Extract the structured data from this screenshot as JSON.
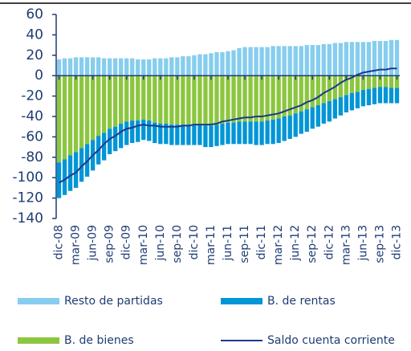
{
  "chart_data": {
    "type": "bar",
    "stacked": true,
    "categories": [
      "dic-08",
      null,
      null,
      "mar-09",
      null,
      null,
      "jun-09",
      null,
      null,
      "sep-09",
      null,
      null,
      "dic-09",
      null,
      null,
      "mar-10",
      null,
      null,
      "jun-10",
      null,
      null,
      "sep-10",
      null,
      null,
      "dic-10",
      null,
      null,
      "mar-11",
      null,
      null,
      "jun-11",
      null,
      null,
      "sep-11",
      null,
      null,
      "dic-11",
      null,
      null,
      "mar-12",
      null,
      null,
      "jun-12",
      null,
      null,
      "sep-12",
      null,
      null,
      "dic-12",
      null,
      null,
      "mar-13",
      null,
      null,
      "jun-13",
      null,
      null,
      "sep-13",
      null,
      null,
      "dic-13"
    ],
    "series": [
      {
        "name": "Resto de partidas",
        "color": "#86cdee",
        "type": "bar",
        "values": [
          16,
          17,
          17,
          18,
          18,
          18,
          18,
          18,
          17,
          17,
          17,
          17,
          17,
          17,
          16,
          16,
          16,
          17,
          17,
          17,
          18,
          18,
          19,
          19,
          20,
          21,
          21,
          22,
          23,
          23,
          24,
          25,
          27,
          28,
          28,
          28,
          28,
          28,
          29,
          29,
          29,
          29,
          29,
          29,
          30,
          30,
          30,
          31,
          31,
          32,
          32,
          33,
          33,
          33,
          33,
          33,
          34,
          34,
          34,
          35,
          35
        ]
      },
      {
        "name": "B. de bienes",
        "color": "#8cc63f",
        "type": "bar",
        "values": [
          -85,
          -82,
          -78,
          -75,
          -71,
          -67,
          -63,
          -59,
          -56,
          -52,
          -50,
          -47,
          -45,
          -44,
          -44,
          -43,
          -44,
          -46,
          -47,
          -47,
          -48,
          -48,
          -48,
          -48,
          -48,
          -48,
          -49,
          -49,
          -48,
          -47,
          -46,
          -46,
          -45,
          -45,
          -45,
          -45,
          -45,
          -44,
          -43,
          -42,
          -40,
          -39,
          -37,
          -35,
          -33,
          -31,
          -29,
          -27,
          -25,
          -23,
          -21,
          -19,
          -17,
          -16,
          -14,
          -13,
          -12,
          -11,
          -11,
          -12,
          -12
        ]
      },
      {
        "name": "B. de rentas",
        "color": "#0095d6",
        "type": "bar",
        "values": [
          -35,
          -35,
          -35,
          -35,
          -33,
          -32,
          -30,
          -28,
          -27,
          -25,
          -24,
          -24,
          -23,
          -22,
          -21,
          -20,
          -20,
          -20,
          -20,
          -20,
          -20,
          -20,
          -20,
          -20,
          -20,
          -20,
          -21,
          -21,
          -21,
          -21,
          -21,
          -21,
          -22,
          -22,
          -22,
          -23,
          -23,
          -23,
          -24,
          -24,
          -24,
          -23,
          -23,
          -22,
          -22,
          -21,
          -21,
          -20,
          -20,
          -19,
          -18,
          -17,
          -17,
          -16,
          -16,
          -16,
          -16,
          -16,
          -16,
          -15,
          -15
        ]
      },
      {
        "name": "Saldo cuenta corriente",
        "color": "#1a3a8c",
        "type": "line",
        "values": [
          -105,
          -102,
          -98,
          -95,
          -89,
          -84,
          -78,
          -73,
          -67,
          -62,
          -59,
          -55,
          -52,
          -51,
          -49,
          -48,
          -49,
          -49,
          -50,
          -50,
          -50,
          -50,
          -49,
          -49,
          -48,
          -48,
          -48,
          -48,
          -47,
          -45,
          -44,
          -43,
          -42,
          -41,
          -41,
          -40,
          -40,
          -39,
          -38,
          -37,
          -35,
          -33,
          -31,
          -29,
          -26,
          -24,
          -21,
          -17,
          -14,
          -11,
          -7,
          -4,
          -2,
          1,
          3,
          4,
          5,
          6,
          6,
          7,
          7
        ]
      }
    ],
    "ylim": [
      -140,
      60
    ],
    "yticks": [
      -140,
      -120,
      -100,
      -80,
      -60,
      -40,
      -20,
      0,
      20,
      40,
      60
    ]
  }
}
